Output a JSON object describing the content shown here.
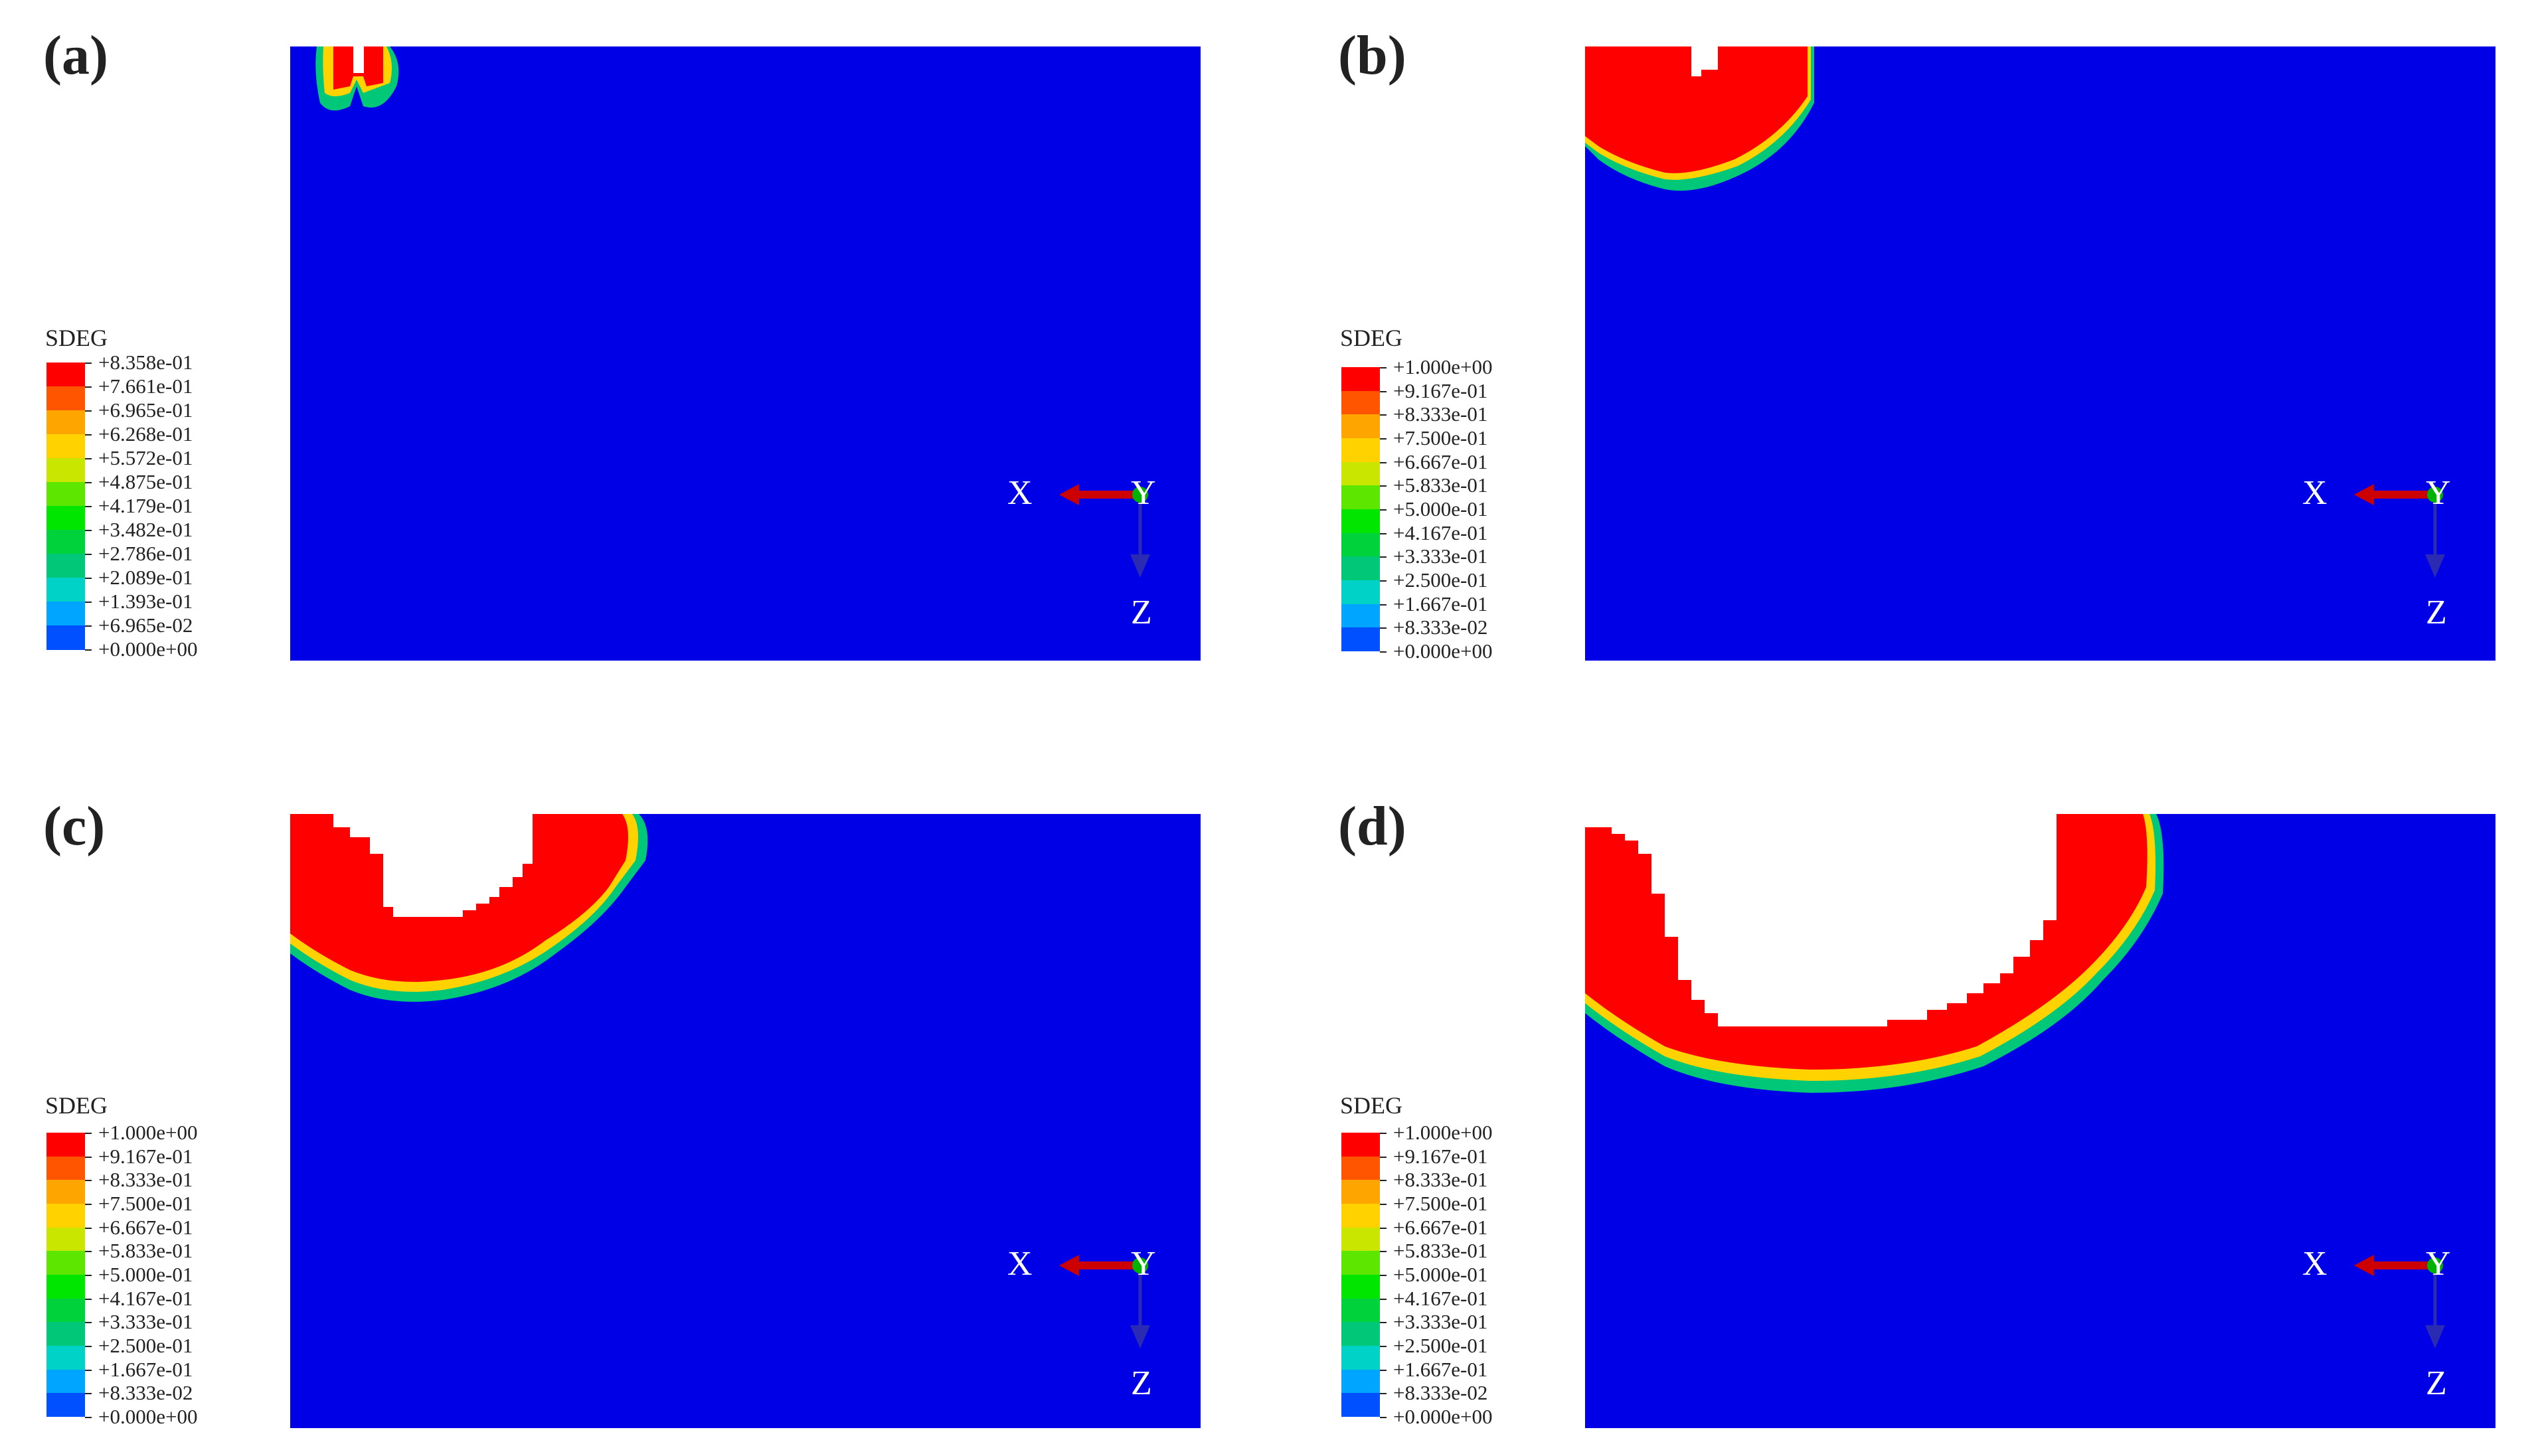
{
  "colors": {
    "field": "#0000e6",
    "damaged": "#ff0000",
    "removed": "#ffffff",
    "x_arrow": "#cc0000",
    "z_arrow": "#2a2ab3",
    "origin": "#00b300"
  },
  "legend_colors": [
    "#ff0000",
    "#ff5400",
    "#ffa500",
    "#ffd200",
    "#c8e600",
    "#5ce600",
    "#00e600",
    "#00d23c",
    "#00c878",
    "#00d2c8",
    "#00a5ff",
    "#0050ff",
    "#0000e6"
  ],
  "panels": [
    {
      "label": "(a)",
      "legend_title": "SDEG",
      "legend_values": [
        "+8.358e-01",
        "+7.661e-01",
        "+6.965e-01",
        "+6.268e-01",
        "+5.572e-01",
        "+4.875e-01",
        "+4.179e-01",
        "+3.482e-01",
        "+2.786e-01",
        "+2.089e-01",
        "+1.393e-01",
        "+6.965e-02",
        "+0.000e+00"
      ],
      "axis": {
        "x": "X",
        "y": "Y",
        "z": "Z"
      }
    },
    {
      "label": "(b)",
      "legend_title": "SDEG",
      "legend_values": [
        "+1.000e+00",
        "+9.167e-01",
        "+8.333e-01",
        "+7.500e-01",
        "+6.667e-01",
        "+5.833e-01",
        "+5.000e-01",
        "+4.167e-01",
        "+3.333e-01",
        "+2.500e-01",
        "+1.667e-01",
        "+8.333e-02",
        "+0.000e+00"
      ],
      "axis": {
        "x": "X",
        "y": "Y",
        "z": "Z"
      }
    },
    {
      "label": "(c)",
      "legend_title": "SDEG",
      "legend_values": [
        "+1.000e+00",
        "+9.167e-01",
        "+8.333e-01",
        "+7.500e-01",
        "+6.667e-01",
        "+5.833e-01",
        "+5.000e-01",
        "+4.167e-01",
        "+3.333e-01",
        "+2.500e-01",
        "+1.667e-01",
        "+8.333e-02",
        "+0.000e+00"
      ],
      "axis": {
        "x": "X",
        "y": "Y",
        "z": "Z"
      }
    },
    {
      "label": "(d)",
      "legend_title": "SDEG",
      "legend_values": [
        "+1.000e+00",
        "+9.167e-01",
        "+8.333e-01",
        "+7.500e-01",
        "+6.667e-01",
        "+5.833e-01",
        "+5.000e-01",
        "+4.167e-01",
        "+3.333e-01",
        "+2.500e-01",
        "+1.667e-01",
        "+8.333e-02",
        "+0.000e+00"
      ],
      "axis": {
        "x": "X",
        "y": "Y",
        "z": "Z"
      }
    }
  ]
}
